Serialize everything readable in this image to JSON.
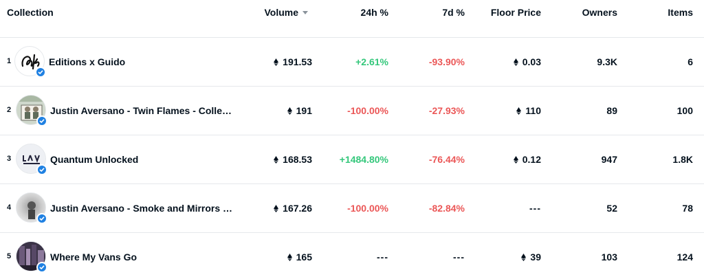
{
  "table": {
    "headers": {
      "collection": "Collection",
      "volume": "Volume",
      "change_24h": "24h %",
      "change_7d": "7d %",
      "floor_price": "Floor Price",
      "owners": "Owners",
      "items": "Items"
    },
    "sort_icon": "caret-down-icon",
    "currency_icon": "eth-icon",
    "verified_icon": "verified-badge-icon",
    "colors": {
      "positive": "#34c77b",
      "negative": "#eb5757",
      "verified": "#2081e2"
    },
    "rows": [
      {
        "rank": "1",
        "name": "Editions x Guido",
        "volume": "191.53",
        "change_24h": "+2.61%",
        "change_7d": "-93.90%",
        "floor_price": "0.03",
        "owners": "9.3K",
        "items": "6"
      },
      {
        "rank": "2",
        "name": "Justin Aversano - Twin Flames - Collectors Edition",
        "volume": "191",
        "change_24h": "-100.00%",
        "change_7d": "-27.93%",
        "floor_price": "110",
        "owners": "89",
        "items": "100"
      },
      {
        "rank": "3",
        "name": "Quantum Unlocked",
        "volume": "168.53",
        "change_24h": "+1484.80%",
        "change_7d": "-76.44%",
        "floor_price": "0.12",
        "owners": "947",
        "items": "1.8K"
      },
      {
        "rank": "4",
        "name": "Justin Aversano - Smoke and Mirrors by Justin Aversano",
        "volume": "167.26",
        "change_24h": "-100.00%",
        "change_7d": "-82.84%",
        "floor_price": "---",
        "owners": "52",
        "items": "78"
      },
      {
        "rank": "5",
        "name": "Where My Vans Go",
        "volume": "165",
        "change_24h": "---",
        "change_7d": "---",
        "floor_price": "39",
        "owners": "103",
        "items": "124"
      }
    ]
  }
}
